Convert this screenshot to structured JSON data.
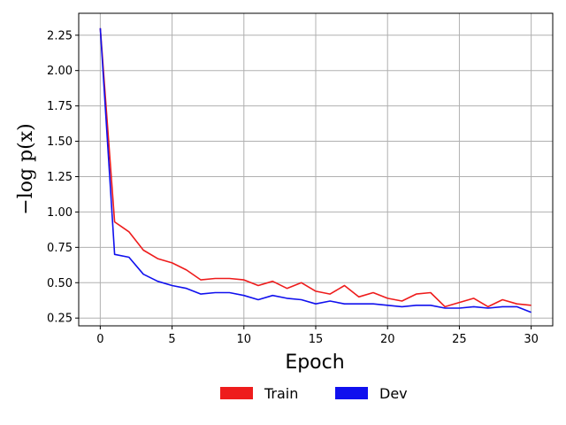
{
  "chart_data": {
    "type": "line",
    "xlabel": "Epoch",
    "ylabel": "−log p(x)",
    "xlim": [
      -1.5,
      31.5
    ],
    "ylim": [
      0.195,
      2.405
    ],
    "xticks": [
      0,
      5,
      10,
      15,
      20,
      25,
      30
    ],
    "yticks": [
      0.25,
      0.5,
      0.75,
      1.0,
      1.25,
      1.5,
      1.75,
      2.0,
      2.25
    ],
    "grid": true,
    "legend": "bottom-center",
    "series": [
      {
        "name": "Train",
        "color": "#ee1c1c",
        "x": [
          0,
          1,
          2,
          3,
          4,
          5,
          6,
          7,
          8,
          9,
          10,
          11,
          12,
          13,
          14,
          15,
          16,
          17,
          18,
          19,
          20,
          21,
          22,
          23,
          24,
          25,
          26,
          27,
          28,
          29,
          30
        ],
        "values": [
          2.3,
          0.93,
          0.86,
          0.73,
          0.67,
          0.64,
          0.59,
          0.52,
          0.53,
          0.53,
          0.52,
          0.48,
          0.51,
          0.46,
          0.5,
          0.44,
          0.42,
          0.48,
          0.4,
          0.43,
          0.39,
          0.37,
          0.42,
          0.43,
          0.33,
          0.36,
          0.39,
          0.33,
          0.38,
          0.35,
          0.34
        ]
      },
      {
        "name": "Dev",
        "color": "#1010ee",
        "x": [
          0,
          1,
          2,
          3,
          4,
          5,
          6,
          7,
          8,
          9,
          10,
          11,
          12,
          13,
          14,
          15,
          16,
          17,
          18,
          19,
          20,
          21,
          22,
          23,
          24,
          25,
          26,
          27,
          28,
          29,
          30
        ],
        "values": [
          2.3,
          0.7,
          0.68,
          0.56,
          0.51,
          0.48,
          0.46,
          0.42,
          0.43,
          0.43,
          0.41,
          0.38,
          0.41,
          0.39,
          0.38,
          0.35,
          0.37,
          0.35,
          0.35,
          0.35,
          0.34,
          0.33,
          0.34,
          0.34,
          0.32,
          0.32,
          0.33,
          0.32,
          0.33,
          0.33,
          0.29
        ]
      }
    ]
  }
}
